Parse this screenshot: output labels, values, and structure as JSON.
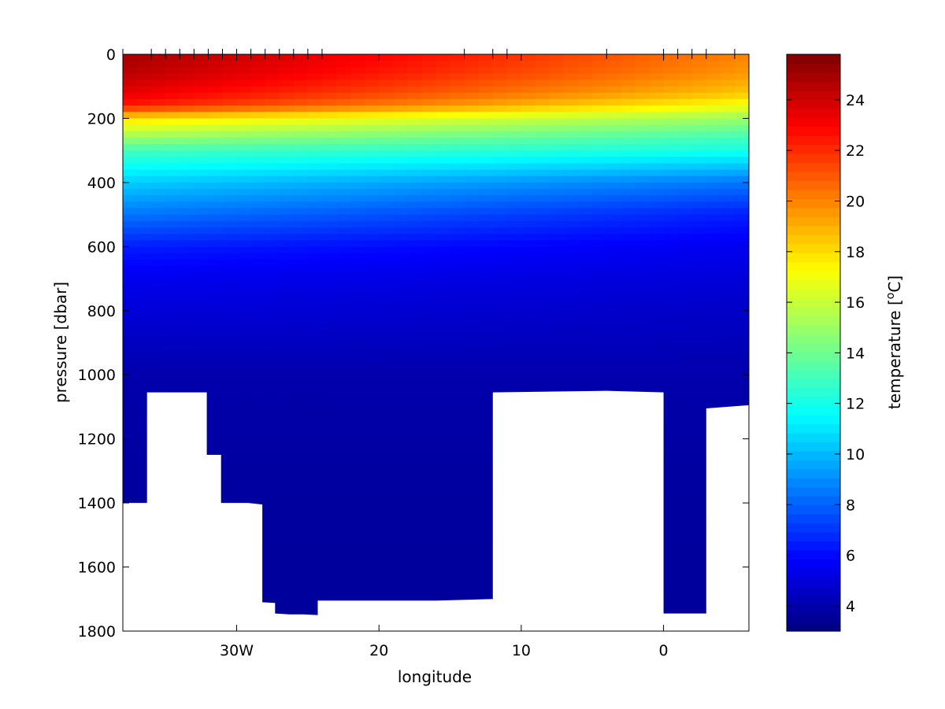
{
  "chart_data": {
    "type": "heatmap",
    "title": "",
    "xlabel": "longitude",
    "ylabel": "pressure [dbar]",
    "xlim": [
      -38,
      6
    ],
    "ylim": [
      0,
      1800
    ],
    "y_reversed": true,
    "x_ticks": [
      {
        "value": -30,
        "label": "30W"
      },
      {
        "value": -20,
        "label": "20"
      },
      {
        "value": -10,
        "label": "10"
      },
      {
        "value": 0,
        "label": "0"
      }
    ],
    "y_ticks": [
      0,
      200,
      400,
      600,
      800,
      1000,
      1200,
      1400,
      1600,
      1800
    ],
    "station_longitudes": [
      -38,
      -36,
      -35,
      -34,
      -33,
      -32,
      -31,
      -30,
      -29,
      -28,
      -27,
      -26,
      -25,
      -24,
      -14,
      -12,
      -11,
      -4,
      0,
      1,
      2,
      3,
      5
    ],
    "bottom_depth_profile": [
      [
        -38,
        1400
      ],
      [
        -36.3,
        1400
      ],
      [
        -36.3,
        1055
      ],
      [
        -32.1,
        1055
      ],
      [
        -32.1,
        1250
      ],
      [
        -31.1,
        1250
      ],
      [
        -31.1,
        1400
      ],
      [
        -29.2,
        1400
      ],
      [
        -28.2,
        1405
      ],
      [
        -28.2,
        1710
      ],
      [
        -27.3,
        1712
      ],
      [
        -27.3,
        1745
      ],
      [
        -26.3,
        1748
      ],
      [
        -25.3,
        1748
      ],
      [
        -24.3,
        1750
      ],
      [
        -24.3,
        1705
      ],
      [
        -16,
        1705
      ],
      [
        -12,
        1700
      ],
      [
        -12,
        1055
      ],
      [
        -4,
        1050
      ],
      [
        0,
        1055
      ],
      [
        0,
        1745
      ],
      [
        3,
        1745
      ],
      [
        3,
        1105
      ],
      [
        6,
        1095
      ]
    ],
    "temperature_profile": {
      "pressure": [
        0,
        60,
        120,
        160,
        200,
        260,
        300,
        400,
        500,
        600,
        700,
        800,
        900,
        1000,
        1200,
        1400,
        1800
      ],
      "western": [
        25,
        24.5,
        23.5,
        22.5,
        18,
        15,
        13,
        10.5,
        8.5,
        6.5,
        5.5,
        5,
        4.5,
        4,
        3.8,
        3.7,
        3.6
      ],
      "eastern": [
        20,
        19.5,
        18.5,
        17,
        15,
        13,
        12,
        8.5,
        6.5,
        5.5,
        5,
        4.6,
        4.3,
        4,
        3.8,
        3.7,
        3.6
      ]
    },
    "colorbar": {
      "label": "temperature [",
      "label_sup": "o",
      "label_end": "C]",
      "range": [
        3,
        25.8
      ],
      "ticks": [
        4,
        6,
        8,
        10,
        12,
        14,
        16,
        18,
        20,
        22,
        24
      ],
      "colormap": "jet"
    },
    "colors": {
      "background": "#ffffff",
      "mask": "#ffffff",
      "axis": "#000000"
    }
  }
}
